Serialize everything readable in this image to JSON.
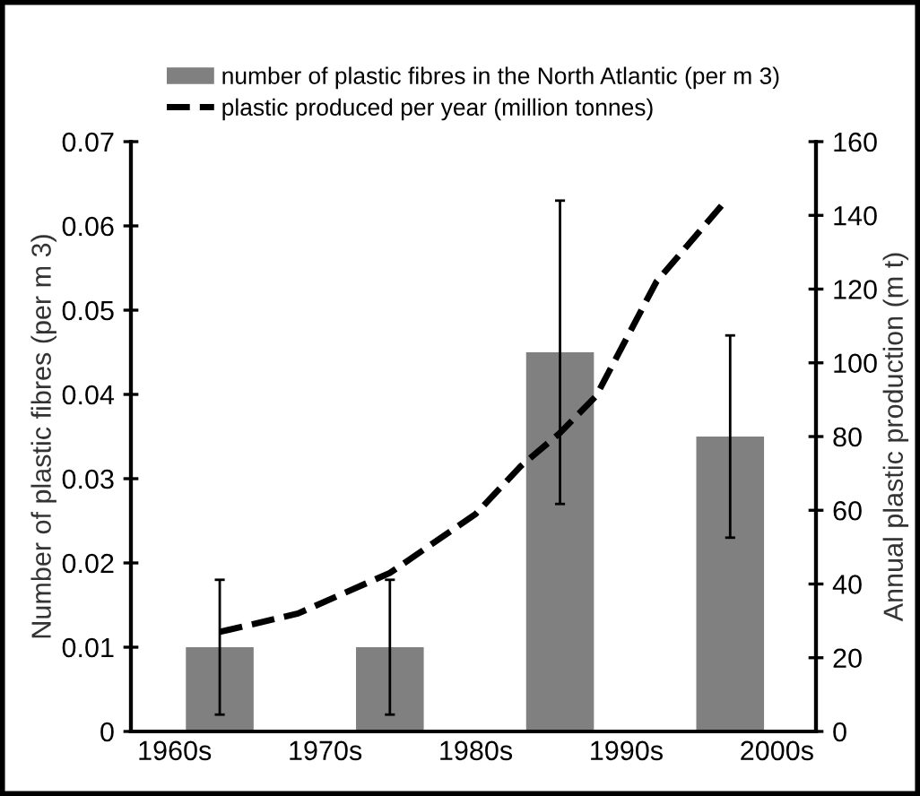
{
  "chart_data": {
    "type": "bar",
    "ylabel": "Number of plastic fibres (per m 3)",
    "y2label": "Annual plastic production (m t)",
    "x": [
      1963,
      1974.3,
      1985.6,
      1996.9
    ],
    "xlim": [
      1957.1,
      2002.6
    ],
    "xticks": [
      {
        "value": 1960,
        "label": "1960s"
      },
      {
        "value": 1970,
        "label": "1970s"
      },
      {
        "value": 1980,
        "label": "1980s"
      },
      {
        "value": 1990,
        "label": "1990s"
      },
      {
        "value": 2000,
        "label": "2000s"
      }
    ],
    "ylim": [
      0,
      0.07
    ],
    "yticks": [
      0,
      0.01,
      0.02,
      0.03,
      0.04,
      0.05,
      0.06,
      0.07
    ],
    "y2lim": [
      0,
      160
    ],
    "y2ticks": [
      0,
      20,
      40,
      60,
      80,
      100,
      120,
      140,
      160
    ],
    "series": [
      {
        "name": "number of plastic fibres in the North Atlantic (per m 3)",
        "color": "#808080",
        "values": [
          0.01,
          0.01,
          0.045,
          0.035
        ],
        "errors": [
          0.008,
          0.008,
          0.018,
          0.012
        ]
      },
      {
        "name": "plastic produced per year (million tonnes)",
        "type": "line",
        "axis": "y2",
        "color": "#000000",
        "line_style": "dashed",
        "x": [
          1963,
          1968.2,
          1974.3,
          1980,
          1983,
          1985.6,
          1988,
          1992,
          1996.4
        ],
        "values": [
          27,
          32,
          43,
          59,
          72,
          81,
          91,
          122,
          143
        ]
      }
    ],
    "legend": "top",
    "grid": false
  }
}
